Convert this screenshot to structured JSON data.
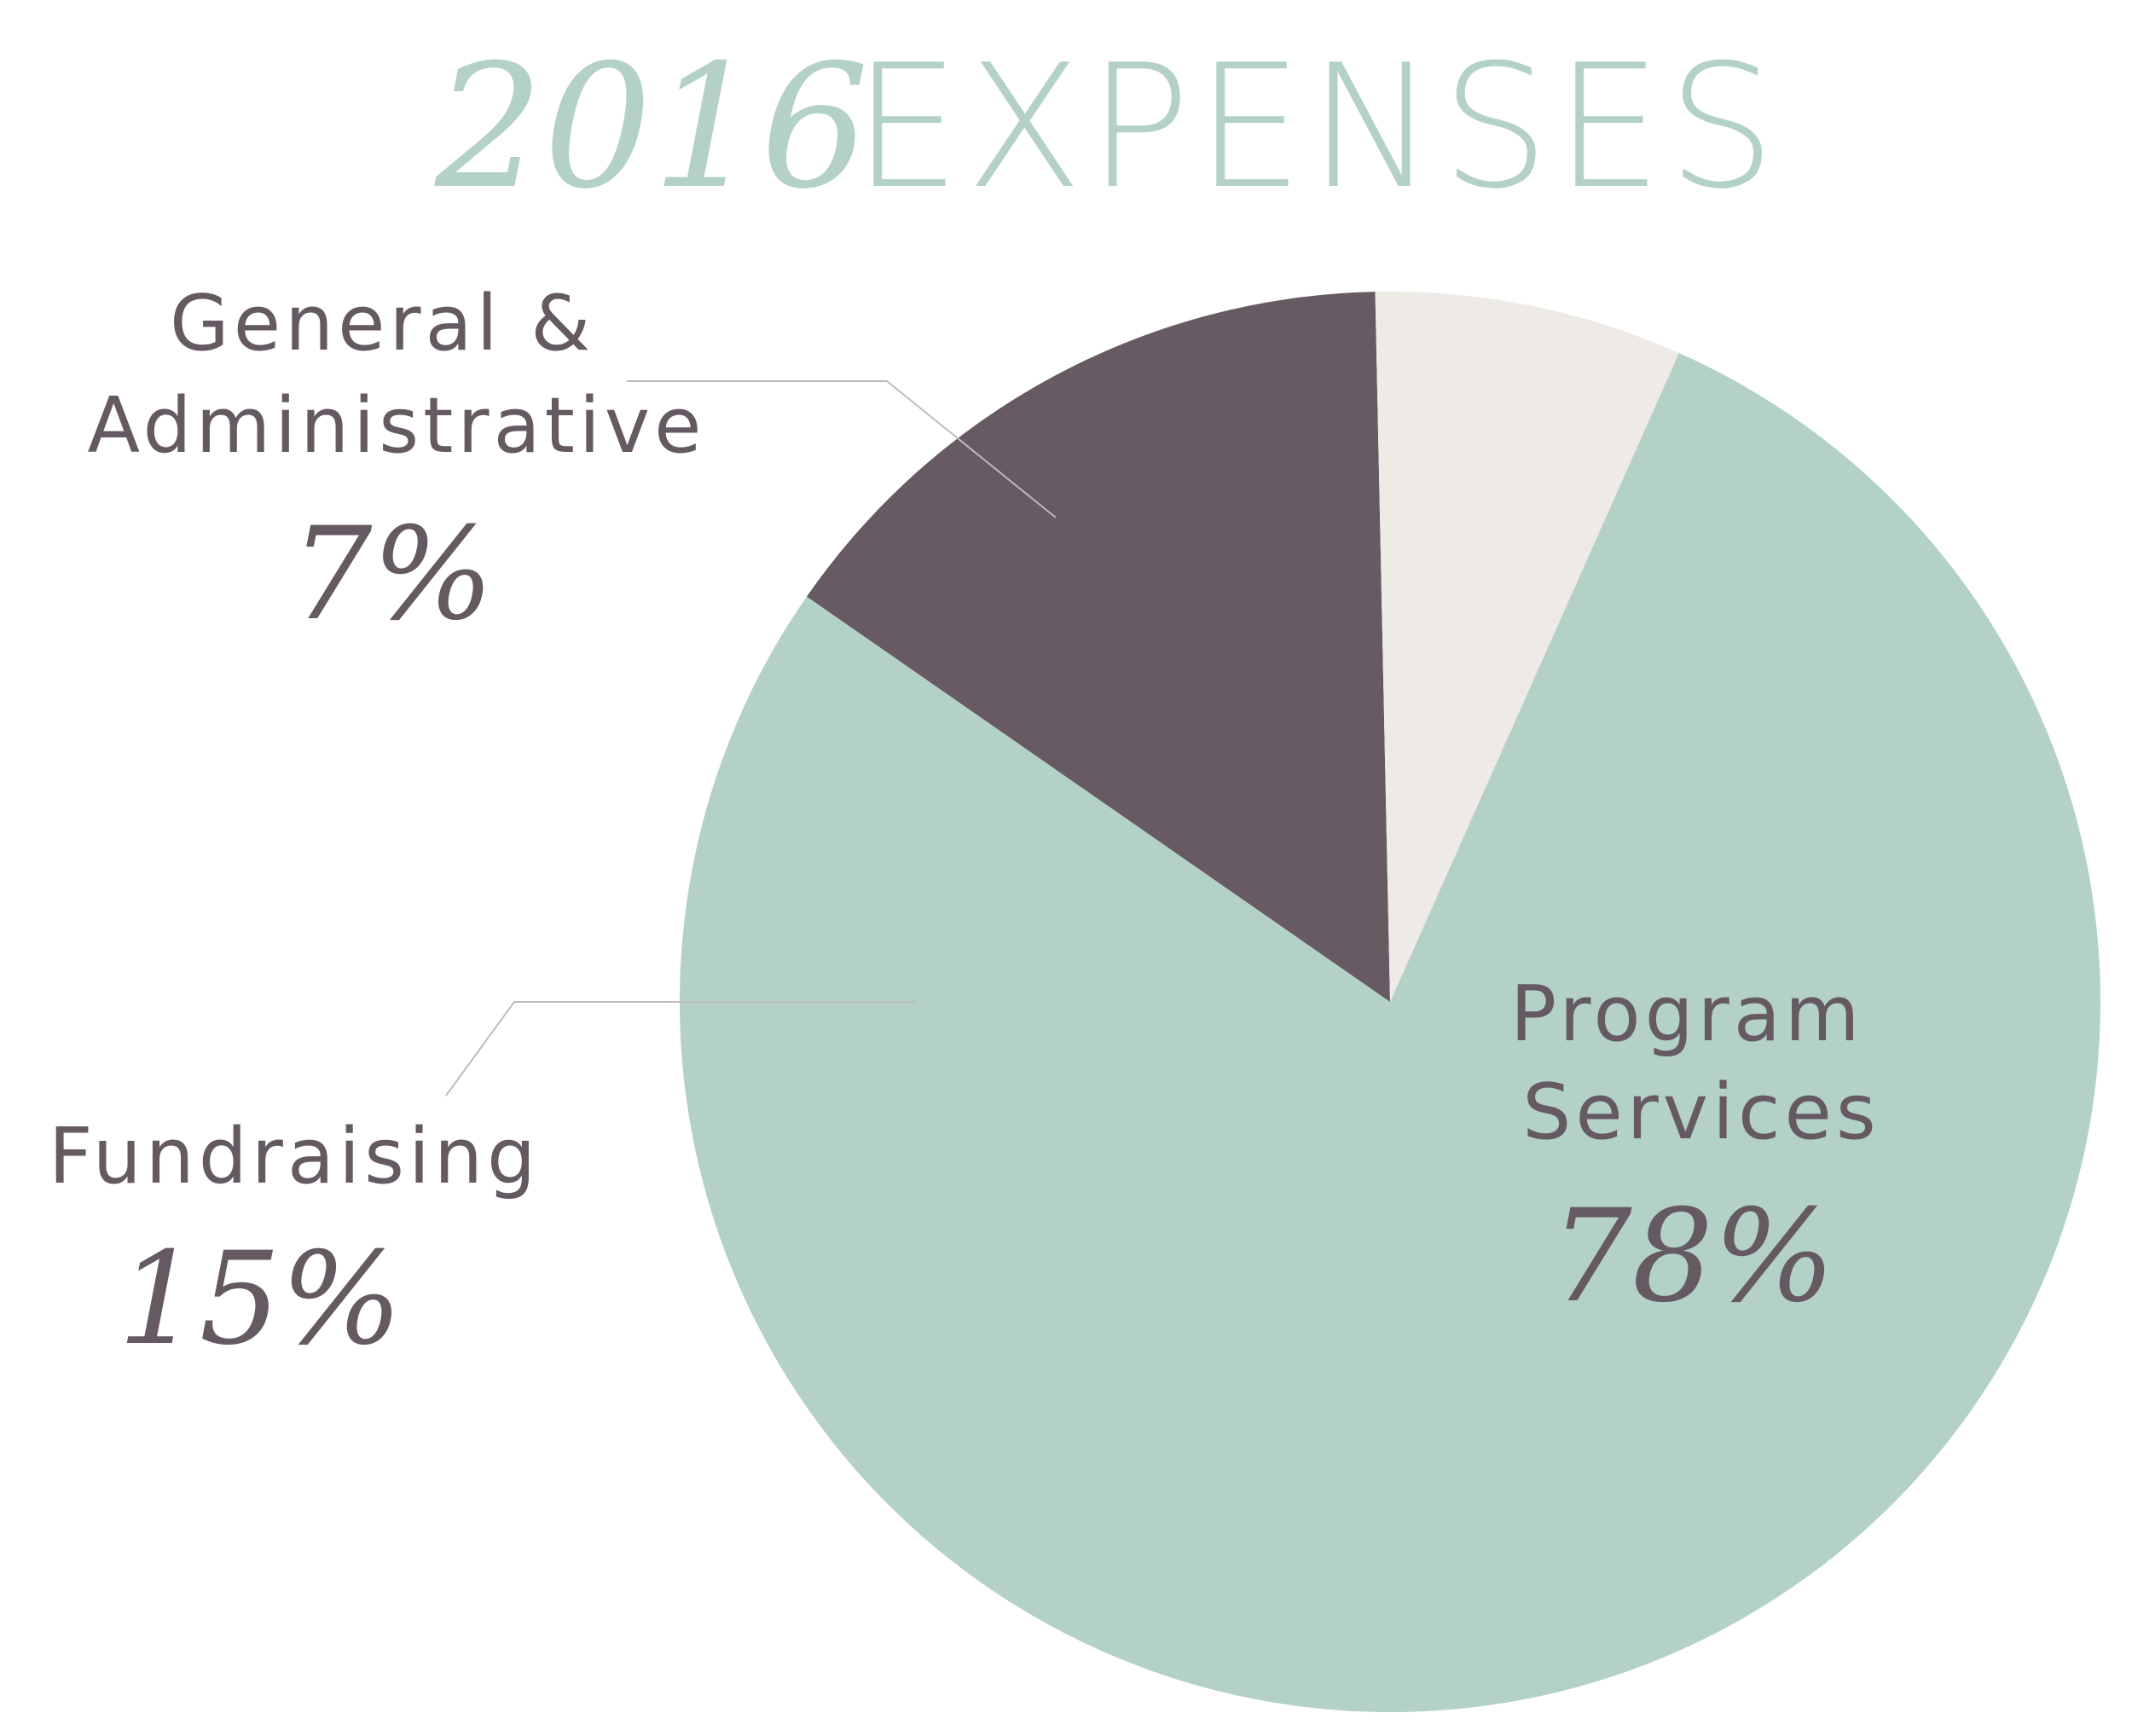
{
  "title": {
    "year": "2016",
    "word": "EXPENSES"
  },
  "chart_data": {
    "type": "pie",
    "title": "2016 EXPENSES",
    "unit": "%",
    "slices": [
      {
        "label_lines": [
          "Program",
          "Services"
        ],
        "value": 78,
        "display": "78%",
        "color": "#b3d1c7"
      },
      {
        "label_lines": [
          "Fundraising"
        ],
        "value": 15,
        "display": "15%",
        "color": "#675a62"
      },
      {
        "label_lines": [
          "General &",
          "Administrative"
        ],
        "value": 7,
        "display": "7%",
        "color": "#eeeae6"
      }
    ]
  },
  "colors": {
    "title": "#b3d1c7",
    "text": "#665a62",
    "leader_line": "#bdbdbd"
  }
}
